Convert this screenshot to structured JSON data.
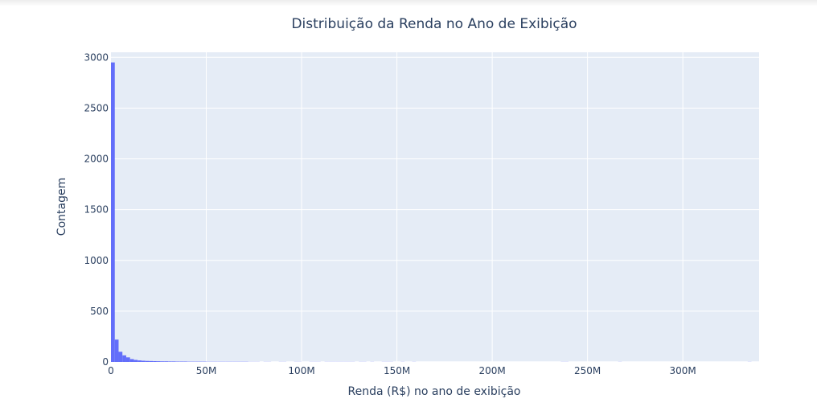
{
  "chart_data": {
    "type": "bar",
    "title": "Distribuição da Renda no Ano de Exibição",
    "xlabel": "Renda (R$) no ano de exibição",
    "ylabel": "Contagem",
    "xlim": [
      0,
      340000000
    ],
    "ylim": [
      0,
      3050
    ],
    "x_ticks": [
      0,
      50000000,
      100000000,
      150000000,
      200000000,
      250000000,
      300000000
    ],
    "x_tick_labels": [
      "0",
      "50M",
      "100M",
      "150M",
      "200M",
      "250M",
      "300M"
    ],
    "y_ticks": [
      0,
      500,
      1000,
      1500,
      2000,
      2500,
      3000
    ],
    "y_tick_labels": [
      "0",
      "500",
      "1000",
      "1500",
      "2000",
      "2500",
      "3000"
    ],
    "grid": true,
    "bin_width": 2000000,
    "series": [
      {
        "color": "#636efa",
        "bin_starts": [
          0,
          2000000,
          4000000,
          6000000,
          8000000,
          10000000,
          12000000,
          14000000,
          16000000,
          18000000,
          20000000,
          22000000,
          24000000,
          26000000,
          28000000,
          30000000,
          32000000,
          34000000,
          36000000,
          38000000,
          40000000,
          42000000,
          44000000,
          46000000,
          48000000,
          50000000,
          52000000,
          54000000,
          56000000,
          58000000,
          60000000,
          62000000,
          64000000,
          66000000,
          68000000,
          70000000,
          72000000,
          74000000,
          76000000,
          80000000,
          82000000,
          88000000,
          90000000,
          96000000,
          98000000,
          104000000,
          106000000,
          108000000,
          112000000,
          114000000,
          116000000,
          118000000,
          120000000,
          122000000,
          124000000,
          126000000,
          130000000,
          132000000,
          136000000,
          142000000,
          144000000,
          146000000,
          152000000,
          158000000,
          236000000,
          238000000,
          266000000,
          334000000
        ],
        "counts": [
          2950,
          220,
          100,
          65,
          45,
          28,
          20,
          15,
          12,
          10,
          9,
          8,
          7,
          6,
          6,
          5,
          5,
          4,
          4,
          4,
          3,
          3,
          3,
          3,
          3,
          2,
          2,
          2,
          2,
          2,
          2,
          2,
          2,
          2,
          2,
          2,
          1,
          1,
          1,
          1,
          1,
          1,
          1,
          1,
          1,
          1,
          1,
          1,
          1,
          1,
          1,
          1,
          1,
          1,
          1,
          1,
          1,
          1,
          1,
          1,
          1,
          1,
          1,
          1,
          1,
          1,
          1,
          1
        ]
      }
    ]
  }
}
